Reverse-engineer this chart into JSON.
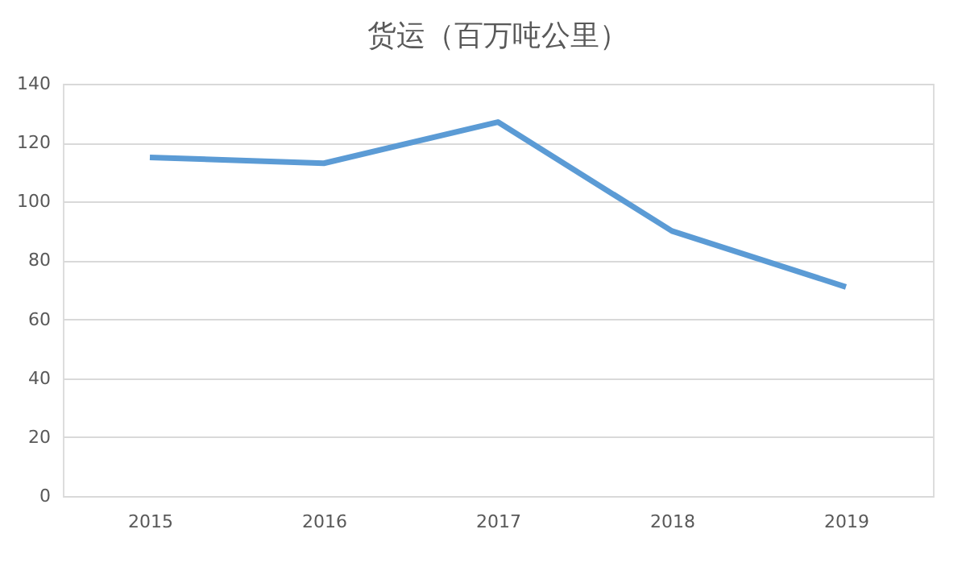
{
  "chart_data": {
    "type": "line",
    "title": "货运（百万吨公里）",
    "categories": [
      "2015",
      "2016",
      "2017",
      "2018",
      "2019"
    ],
    "series": [
      {
        "color": "#5b9bd5",
        "values": [
          115,
          113,
          127,
          90,
          71
        ]
      }
    ],
    "ylim": [
      0,
      140
    ],
    "yticks": [
      0,
      20,
      40,
      60,
      80,
      100,
      120,
      140
    ],
    "grid": "y",
    "legend": false,
    "marker": "none",
    "line_style": "solid"
  }
}
